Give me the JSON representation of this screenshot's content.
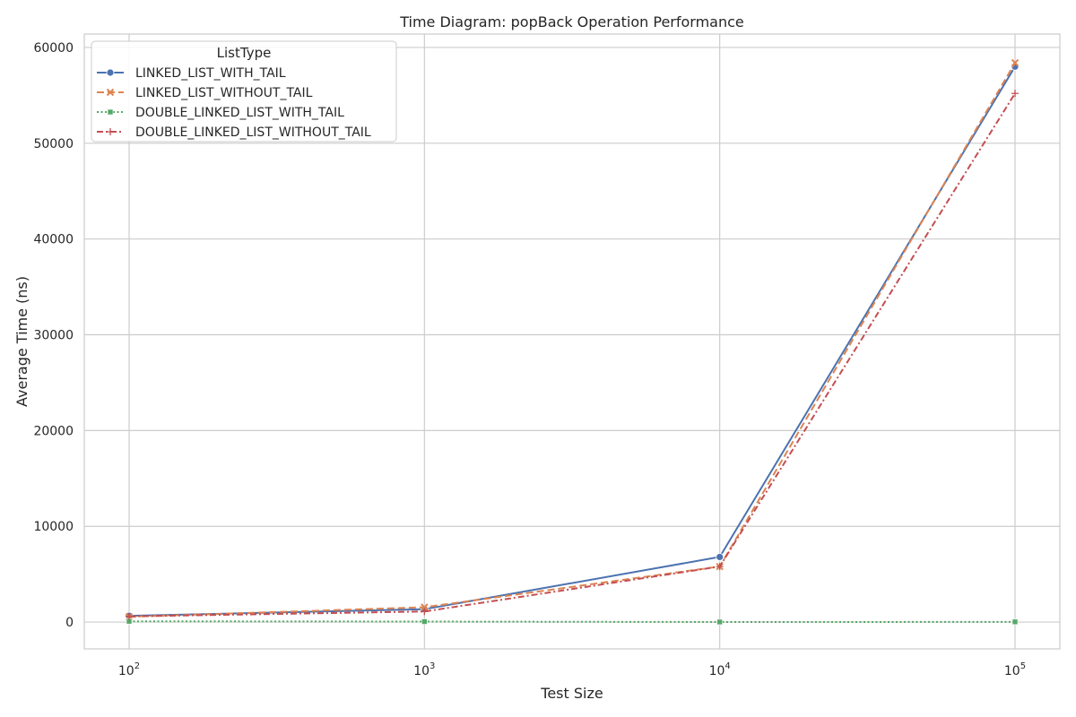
{
  "chart_data": {
    "type": "line",
    "title": "Time Diagram: popBack Operation Performance",
    "xlabel": "Test Size",
    "ylabel": "Average Time (ns)",
    "x_scale": "log",
    "x": [
      100,
      1000,
      10000,
      100000
    ],
    "x_tick_labels": [
      {
        "base": "10",
        "exp": "2"
      },
      {
        "base": "10",
        "exp": "3"
      },
      {
        "base": "10",
        "exp": "4"
      },
      {
        "base": "10",
        "exp": "5"
      }
    ],
    "y_ticks": [
      0,
      10000,
      20000,
      30000,
      40000,
      50000,
      60000
    ],
    "ylim": [
      -2800,
      61400
    ],
    "grid": true,
    "legend": {
      "title": "ListType",
      "placement": "top-left"
    },
    "series": [
      {
        "name": "LINKED_LIST_WITH_TAIL",
        "values": [
          650,
          1350,
          6800,
          58000
        ],
        "color": "#4c72b0",
        "dash": "",
        "marker": "circle"
      },
      {
        "name": "LINKED_LIST_WITHOUT_TAIL",
        "values": [
          550,
          1550,
          5800,
          58400
        ],
        "color": "#dd8452",
        "dash": "8,4",
        "marker": "x"
      },
      {
        "name": "DOUBLE_LINKED_LIST_WITH_TAIL",
        "values": [
          80,
          50,
          10,
          20
        ],
        "color": "#55a868",
        "dash": "2,2.5",
        "marker": "square"
      },
      {
        "name": "DOUBLE_LINKED_LIST_WITHOUT_TAIL",
        "values": [
          600,
          1100,
          5800,
          55200
        ],
        "color": "#c44e52",
        "dash": "7,3,2,3",
        "marker": "plus"
      }
    ]
  }
}
